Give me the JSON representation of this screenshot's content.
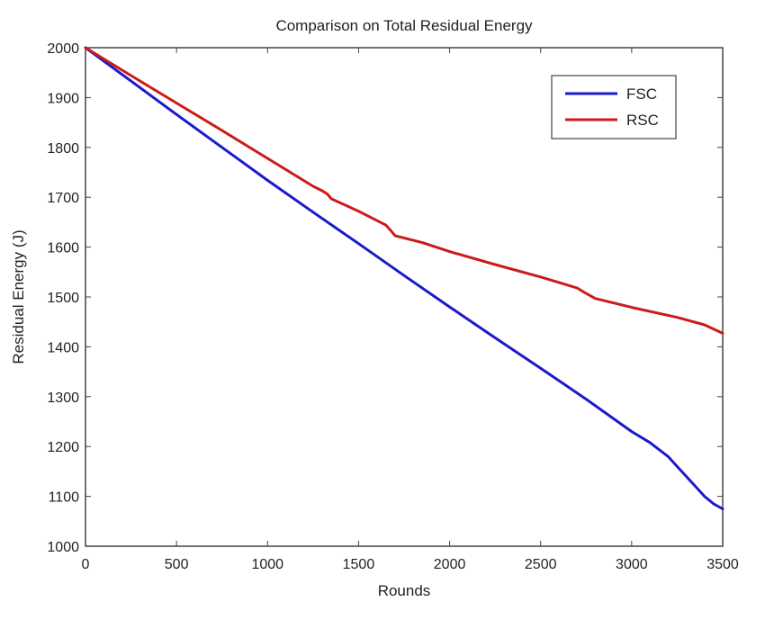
{
  "chart_data": {
    "type": "line",
    "title": "Comparison on Total Residual Energy",
    "xlabel": "Rounds",
    "ylabel": "Residual Energy (J)",
    "xlim": [
      0,
      3500
    ],
    "ylim": [
      1000,
      2000
    ],
    "xticks": [
      "0",
      "500",
      "1000",
      "1500",
      "2000",
      "2500",
      "3000",
      "3500"
    ],
    "yticks": [
      "1000",
      "1100",
      "1200",
      "1300",
      "1400",
      "1500",
      "1600",
      "1700",
      "1800",
      "1900",
      "2000"
    ],
    "grid": false,
    "legend_position": "top-right",
    "series": [
      {
        "name": "FSC",
        "color": "#1a1acc",
        "x": [
          0,
          250,
          500,
          750,
          1000,
          1250,
          1500,
          1750,
          2000,
          2250,
          2500,
          2750,
          3000,
          3100,
          3200,
          3250,
          3300,
          3350,
          3400,
          3450,
          3500
        ],
        "y": [
          2000,
          1933,
          1866,
          1800,
          1734,
          1670,
          1607,
          1543,
          1480,
          1418,
          1357,
          1295,
          1230,
          1208,
          1180,
          1160,
          1140,
          1120,
          1100,
          1085,
          1075
        ]
      },
      {
        "name": "RSC",
        "color": "#cc1a1a",
        "x": [
          0,
          250,
          500,
          750,
          1000,
          1250,
          1300,
          1330,
          1350,
          1500,
          1650,
          1680,
          1700,
          1850,
          2000,
          2250,
          2500,
          2700,
          2750,
          2800,
          3000,
          3250,
          3400,
          3500
        ],
        "y": [
          2000,
          1944,
          1889,
          1834,
          1778,
          1722,
          1713,
          1706,
          1697,
          1672,
          1644,
          1632,
          1623,
          1609,
          1591,
          1565,
          1540,
          1518,
          1507,
          1497,
          1479,
          1459,
          1444,
          1427
        ]
      }
    ]
  }
}
